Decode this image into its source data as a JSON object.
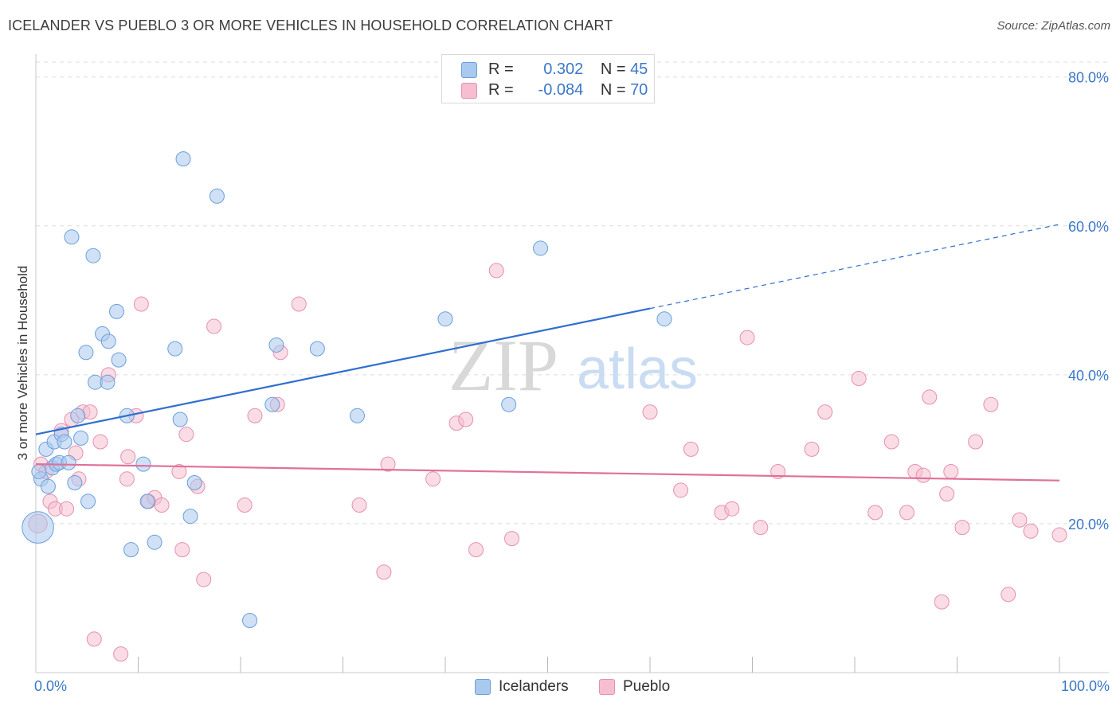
{
  "header": {
    "title": "ICELANDER VS PUEBLO 3 OR MORE VEHICLES IN HOUSEHOLD CORRELATION CHART",
    "source": "Source: ZipAtlas.com"
  },
  "colors": {
    "blue_fill": "#aac9ee",
    "blue_stroke": "#6a9edb",
    "blue_line": "#2f6fd0",
    "pink_fill": "#f6bfd0",
    "pink_stroke": "#e58fae",
    "pink_line": "#e0709a",
    "tick_label": "#3b78c8",
    "grid": "#dcdcdc"
  },
  "legend": {
    "rows": [
      {
        "r_label": "R =",
        "r_value": "0.302",
        "n_label": "N =",
        "n_value": "45"
      },
      {
        "r_label": "R =",
        "r_value": "-0.084",
        "n_label": "N =",
        "n_value": "70"
      }
    ]
  },
  "bottom_legend": [
    "Icelanders",
    "Pueblo"
  ],
  "watermark": {
    "zip": "ZIP",
    "atlas": "atlas"
  },
  "chart_data": {
    "type": "scatter",
    "title": "ICELANDER VS PUEBLO 3 OR MORE VEHICLES IN HOUSEHOLD CORRELATION CHART",
    "xlabel": "",
    "ylabel": "3 or more Vehicles in Household",
    "xlim": [
      0,
      100
    ],
    "ylim": [
      0,
      82
    ],
    "x_tick_labels": [
      "0.0%",
      "100.0%"
    ],
    "y_ticks": [
      20,
      40,
      60,
      80
    ],
    "y_tick_labels": [
      "20.0%",
      "40.0%",
      "60.0%",
      "80.0%"
    ],
    "grid": "horizontal dashed",
    "series": [
      {
        "name": "Icelanders",
        "R": 0.302,
        "N": 45,
        "trend": {
          "x0": 0,
          "y0": 32.0,
          "x1": 60,
          "y1": 48.9,
          "dash_to_x": 100,
          "dash_to_y": 60.2
        },
        "points": [
          [
            0.2,
            19.5,
            2.2
          ],
          [
            0.5,
            26.0,
            1
          ],
          [
            1.0,
            30.0,
            1
          ],
          [
            1.2,
            25.0,
            1
          ],
          [
            1.6,
            27.5,
            1
          ],
          [
            1.8,
            31.0,
            1
          ],
          [
            2.0,
            28.0,
            1
          ],
          [
            2.3,
            28.2,
            1
          ],
          [
            2.5,
            32.0,
            1
          ],
          [
            2.8,
            31.0,
            1
          ],
          [
            3.2,
            28.2,
            1
          ],
          [
            3.5,
            58.5,
            1
          ],
          [
            3.8,
            25.5,
            1
          ],
          [
            4.1,
            34.5,
            1
          ],
          [
            4.4,
            31.5,
            1
          ],
          [
            4.9,
            43.0,
            1
          ],
          [
            5.1,
            23.0,
            1
          ],
          [
            5.6,
            56.0,
            1
          ],
          [
            5.8,
            39.0,
            1
          ],
          [
            6.5,
            45.5,
            1
          ],
          [
            7.0,
            39.0,
            1
          ],
          [
            7.1,
            44.5,
            1
          ],
          [
            7.9,
            48.5,
            1
          ],
          [
            8.1,
            42.0,
            1
          ],
          [
            8.9,
            34.5,
            1
          ],
          [
            9.3,
            16.5,
            1
          ],
          [
            10.5,
            28.0,
            1
          ],
          [
            10.9,
            23.0,
            1
          ],
          [
            11.6,
            17.5,
            1
          ],
          [
            13.6,
            43.5,
            1
          ],
          [
            14.1,
            34.0,
            1
          ],
          [
            14.4,
            69.0,
            1
          ],
          [
            15.1,
            21.0,
            1
          ],
          [
            15.5,
            25.5,
            1
          ],
          [
            17.7,
            64.0,
            1
          ],
          [
            20.9,
            7.0,
            1
          ],
          [
            23.1,
            36.0,
            1
          ],
          [
            23.5,
            44.0,
            1
          ],
          [
            27.5,
            43.5,
            1
          ],
          [
            31.4,
            34.5,
            1
          ],
          [
            40.0,
            47.5,
            1
          ],
          [
            46.2,
            36.0,
            1
          ],
          [
            49.3,
            57.0,
            1
          ],
          [
            61.4,
            47.5,
            1
          ],
          [
            0.3,
            27.0,
            1
          ]
        ]
      },
      {
        "name": "Pueblo",
        "R": -0.084,
        "N": 70,
        "trend": {
          "x0": 0,
          "y0": 28.0,
          "x1": 100,
          "y1": 25.8
        },
        "points": [
          [
            0.2,
            20.0,
            1.3
          ],
          [
            0.5,
            28.0,
            1
          ],
          [
            1.0,
            27.0,
            1
          ],
          [
            1.4,
            23.0,
            1
          ],
          [
            1.9,
            22.0,
            1
          ],
          [
            2.5,
            32.5,
            1
          ],
          [
            3.0,
            22.0,
            1
          ],
          [
            3.5,
            34.0,
            1
          ],
          [
            3.9,
            29.5,
            1
          ],
          [
            4.2,
            26.0,
            1
          ],
          [
            4.6,
            35.0,
            1
          ],
          [
            5.3,
            35.0,
            1
          ],
          [
            5.7,
            4.5,
            1
          ],
          [
            6.3,
            31.0,
            1
          ],
          [
            7.1,
            40.0,
            1
          ],
          [
            8.3,
            2.5,
            1
          ],
          [
            8.9,
            26.0,
            1
          ],
          [
            9.0,
            29.0,
            1
          ],
          [
            9.8,
            34.5,
            1
          ],
          [
            10.3,
            49.5,
            1
          ],
          [
            11.0,
            23.0,
            1
          ],
          [
            11.6,
            23.5,
            1
          ],
          [
            12.3,
            22.5,
            1
          ],
          [
            14.0,
            27.0,
            1
          ],
          [
            14.3,
            16.5,
            1
          ],
          [
            14.7,
            32.0,
            1
          ],
          [
            15.8,
            25.0,
            1
          ],
          [
            16.4,
            12.5,
            1
          ],
          [
            17.4,
            46.5,
            1
          ],
          [
            20.4,
            22.5,
            1
          ],
          [
            21.4,
            34.5,
            1
          ],
          [
            23.6,
            36.0,
            1
          ],
          [
            23.9,
            43.0,
            1
          ],
          [
            25.7,
            49.5,
            1
          ],
          [
            31.6,
            22.5,
            1
          ],
          [
            34.0,
            13.5,
            1
          ],
          [
            34.4,
            28.0,
            1
          ],
          [
            38.8,
            26.0,
            1
          ],
          [
            41.1,
            33.5,
            1
          ],
          [
            42.0,
            34.0,
            1
          ],
          [
            43.0,
            16.5,
            1
          ],
          [
            45.0,
            54.0,
            1
          ],
          [
            46.5,
            18.0,
            1
          ],
          [
            60.0,
            35.0,
            1
          ],
          [
            63.0,
            24.5,
            1
          ],
          [
            64.0,
            30.0,
            1
          ],
          [
            67.0,
            21.5,
            1
          ],
          [
            68.0,
            22.0,
            1
          ],
          [
            69.5,
            45.0,
            1
          ],
          [
            70.8,
            19.5,
            1
          ],
          [
            72.5,
            27.0,
            1
          ],
          [
            75.8,
            30.0,
            1
          ],
          [
            77.1,
            35.0,
            1
          ],
          [
            80.4,
            39.5,
            1
          ],
          [
            82.0,
            21.5,
            1
          ],
          [
            83.6,
            31.0,
            1
          ],
          [
            85.1,
            21.5,
            1
          ],
          [
            85.9,
            27.0,
            1
          ],
          [
            86.7,
            26.5,
            1
          ],
          [
            87.3,
            37.0,
            1
          ],
          [
            88.5,
            9.5,
            1
          ],
          [
            89.0,
            24.0,
            1
          ],
          [
            89.4,
            27.0,
            1
          ],
          [
            90.5,
            19.5,
            1
          ],
          [
            91.8,
            31.0,
            1
          ],
          [
            93.3,
            36.0,
            1
          ],
          [
            95.0,
            10.5,
            1
          ],
          [
            96.1,
            20.5,
            1
          ],
          [
            97.2,
            19.0,
            1
          ],
          [
            100.0,
            18.5,
            1
          ]
        ]
      }
    ]
  }
}
